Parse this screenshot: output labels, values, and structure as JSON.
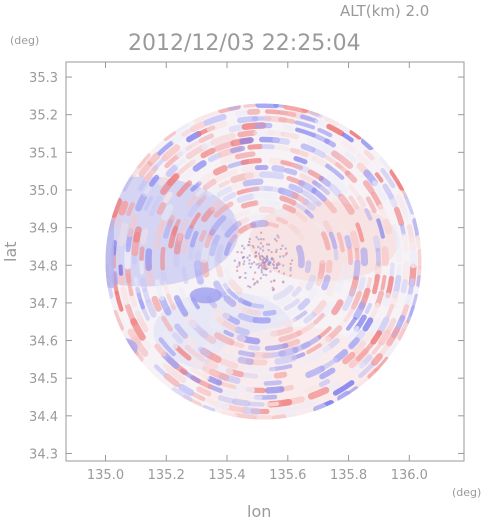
{
  "header": {
    "altitude_label": "ALT(km)  2.0",
    "timestamp": "2012/12/03 22:25:04"
  },
  "chart_data": {
    "type": "heatmap",
    "title": "2012/12/03 22:25:04",
    "subtitle": "ALT(km)  2.0",
    "xlabel": "lon",
    "ylabel": "lat",
    "x_unit": "(deg)",
    "y_unit": "(deg)",
    "xlim": [
      134.87,
      136.18
    ],
    "ylim": [
      34.28,
      35.34
    ],
    "x_ticks": [
      135.0,
      135.2,
      135.4,
      135.6,
      135.8,
      136.0
    ],
    "x_tick_labels": [
      "135.0",
      "135.2",
      "135.4",
      "135.6",
      "135.8",
      "136.0"
    ],
    "y_ticks": [
      34.3,
      34.4,
      34.5,
      34.6,
      34.7,
      34.8,
      34.9,
      35.0,
      35.1,
      35.2,
      35.3
    ],
    "y_tick_labels": [
      "34.3",
      "34.4",
      "34.5",
      "34.6",
      "34.7",
      "34.8",
      "34.9",
      "35.0",
      "35.1",
      "35.2",
      "35.3"
    ],
    "radar_center": [
      135.52,
      34.81
    ],
    "radar_radius_deg": 0.52,
    "colors": {
      "positive": "#f08a8a",
      "negative": "#8c8cf0",
      "neutral": "#f6f2f6",
      "axis": "#9a9a9a"
    },
    "grid": false
  }
}
